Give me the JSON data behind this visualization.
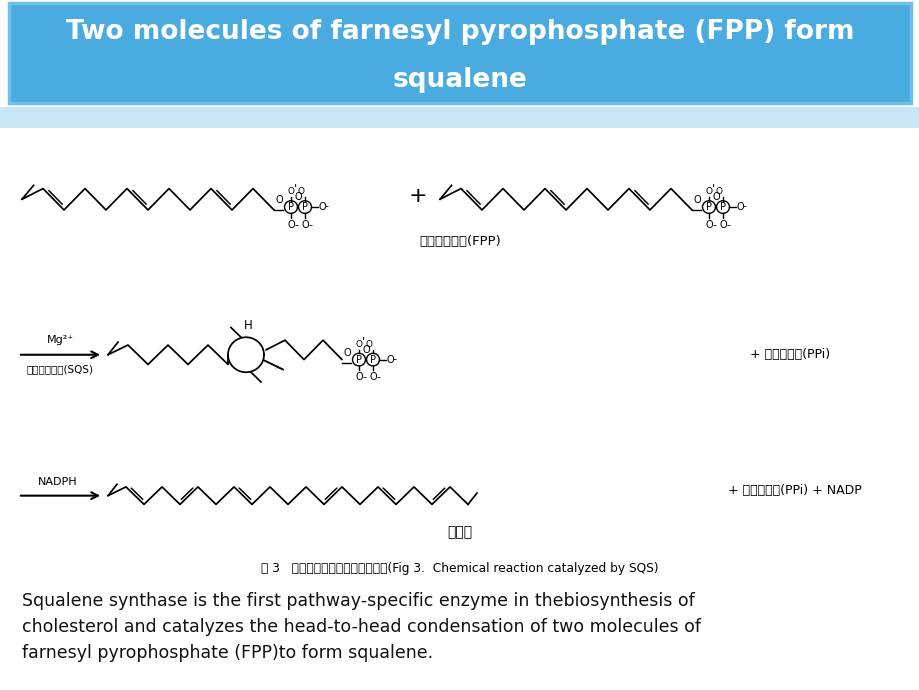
{
  "title_line1": "Two molecules of farnesyl pyrophosphate (FPP) form",
  "title_line2": "squalene",
  "title_bg_top": "#4AABE0",
  "title_bg_bot": "#2E8BBF",
  "title_border_color": "#6EC0E8",
  "title_text_color": "#FFFFFF",
  "bg_color": "#FFFFFF",
  "strip_color": "#C8E6F5",
  "label_fpp": "法呢基二磷酸(FPP)",
  "label_intermediate": "角鲨烯",
  "label_sqs_top": "角鲨烯合成酶(SQS)",
  "label_mg": "Mg²⁺",
  "label_nadph": "NADPH",
  "label_ppi1": "+ 无机焦磷酸(PPi)",
  "label_ppi2": "+ 无机焦磷酸(PPi) + NADP",
  "fig_caption": "图 3   角鲨烯合成酶催化的化学反应(Fig 3.  Chemical reaction catalyzed by SQS)",
  "body_text_line1": "Squalene synthase is the first pathway-specific enzyme in thebiosynthesis of",
  "body_text_line2": "cholesterol and catalyzes the head-to-head condensation of two molecules of",
  "body_text_line3": "farnesyl pyrophosphate (FPP)to form squalene.",
  "body_text_color": "#111111",
  "body_text_size": 12.5
}
